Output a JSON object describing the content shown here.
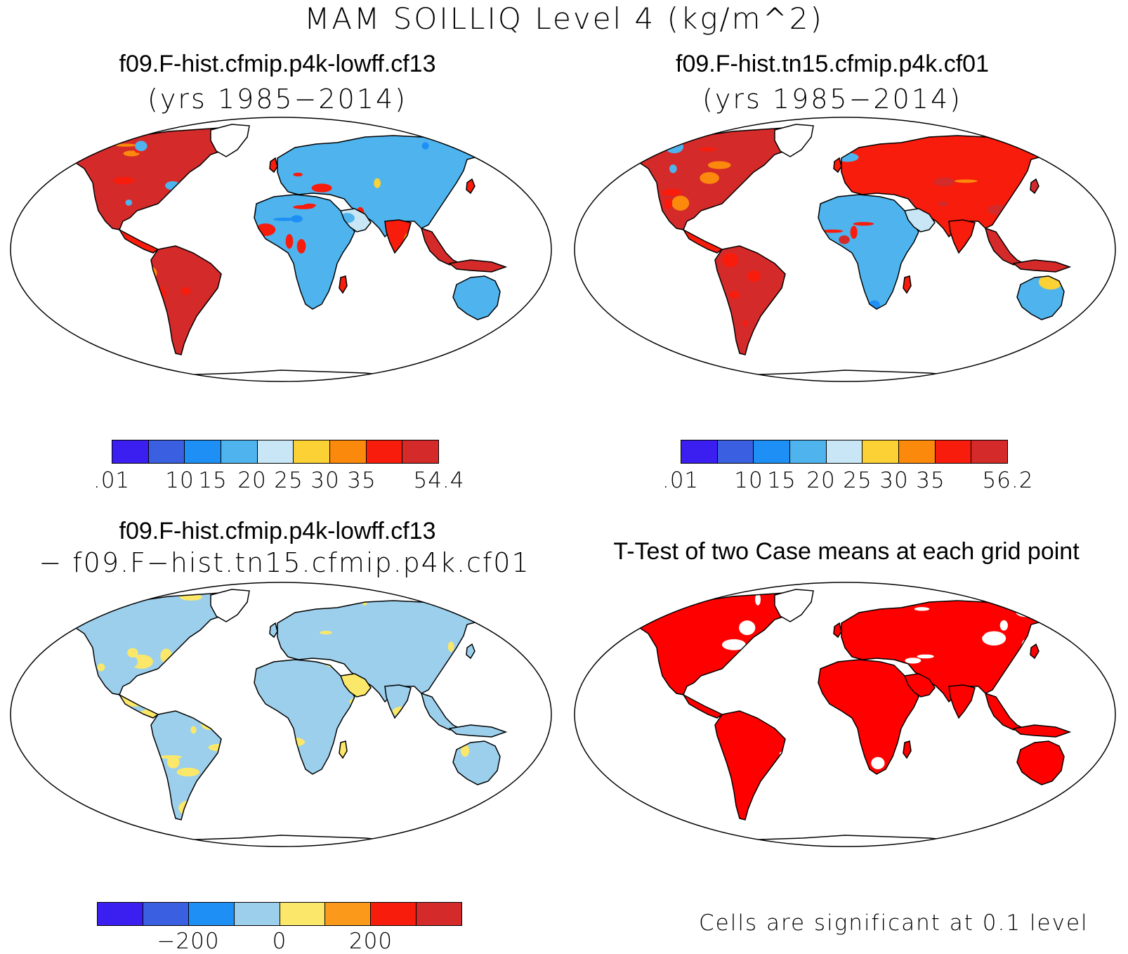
{
  "figure": {
    "title": "MAM SOILLIQ Level 4 (kg/m^2)"
  },
  "panels": [
    {
      "id": "case1",
      "title_line1": "f09.F-hist.cfmip.p4k-lowff.cf13",
      "title_line2": "(yrs 1985−2014)",
      "colorbar": {
        "colors": [
          "#3b1ef0",
          "#3a5fe0",
          "#1e90f5",
          "#4fb4ee",
          "#c8e6f5",
          "#fbd136",
          "#fb8a0c",
          "#f81c0c",
          "#d42a2a"
        ],
        "labels": [
          ".01",
          "10",
          "15",
          "20",
          "25",
          "30",
          "35",
          "54.4"
        ]
      }
    },
    {
      "id": "case2",
      "title_line1": "f09.F-hist.tn15.cfmip.p4k.cf01",
      "title_line2": "(yrs 1985−2014)",
      "colorbar": {
        "colors": [
          "#3b1ef0",
          "#3a5fe0",
          "#1e90f5",
          "#4fb4ee",
          "#c8e6f5",
          "#fbd136",
          "#fb8a0c",
          "#f81c0c",
          "#d42a2a"
        ],
        "labels": [
          ".01",
          "10",
          "15",
          "20",
          "25",
          "30",
          "35",
          "56.2"
        ]
      }
    },
    {
      "id": "difference",
      "title_line1": "f09.F-hist.cfmip.p4k-lowff.cf13",
      "title_line2": "− f09.F−hist.tn15.cfmip.p4k.cf01",
      "colorbar": {
        "colors": [
          "#3b1ef0",
          "#3a5fe0",
          "#1e90f5",
          "#9ccfec",
          "#fbe86a",
          "#fb9a1a",
          "#f81c0c",
          "#d42a2a"
        ],
        "labels": [
          "−200",
          "0",
          "200"
        ]
      }
    },
    {
      "id": "ttest",
      "title_line1": "T-Test of two Case means at each grid point",
      "note": "Cells are significant at 0.1 level",
      "significant_color": "#ff0000"
    }
  ]
}
